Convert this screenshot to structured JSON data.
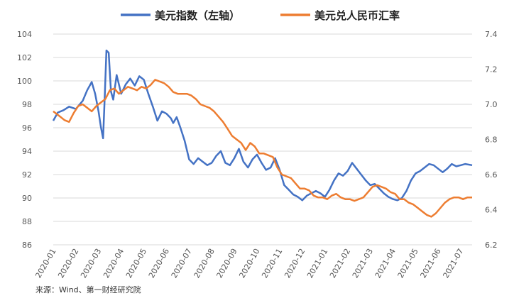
{
  "chart_data": {
    "type": "line",
    "title": "",
    "legend": [
      {
        "name": "美元指数（左轴）",
        "color": "#4472C4"
      },
      {
        "name": "美元兑人民币汇率",
        "color": "#ED7D31"
      }
    ],
    "x_tick_labels": [
      "2020-01",
      "2020-02",
      "2020-03",
      "2020-04",
      "2020-05",
      "2020-06",
      "2020-07",
      "2020-08",
      "2020-09",
      "2020-10",
      "2020-11",
      "2020-12",
      "2021-01",
      "2021-02",
      "2021-03",
      "2021-04",
      "2021-05",
      "2021-06",
      "2021-07"
    ],
    "left_axis": {
      "min": 86,
      "max": 104,
      "ticks": [
        "86",
        "88",
        "90",
        "92",
        "94",
        "96",
        "98",
        "100",
        "102",
        "104"
      ]
    },
    "right_axis": {
      "min": 6.2,
      "max": 7.4,
      "ticks": [
        "6.2",
        "6.4",
        "6.6",
        "6.8",
        "7.0",
        "7.2",
        "7.4"
      ]
    },
    "series": [
      {
        "name": "美元指数（左轴）",
        "axis": "left",
        "color": "#4472C4",
        "x": [
          0,
          0.2,
          0.45,
          0.7,
          1.0,
          1.3,
          1.5,
          1.7,
          1.85,
          2.0,
          2.1,
          2.2,
          2.28,
          2.35,
          2.45,
          2.55,
          2.65,
          2.8,
          3.0,
          3.2,
          3.4,
          3.6,
          3.8,
          4.0,
          4.2,
          4.4,
          4.6,
          4.8,
          5.0,
          5.2,
          5.3,
          5.45,
          5.6,
          5.8,
          6.0,
          6.2,
          6.4,
          6.6,
          6.8,
          7.0,
          7.2,
          7.4,
          7.6,
          7.8,
          8.0,
          8.2,
          8.4,
          8.6,
          8.8,
          9.0,
          9.2,
          9.4,
          9.6,
          9.8,
          10.0,
          10.2,
          10.4,
          10.6,
          10.8,
          11.0,
          11.2,
          11.4,
          11.6,
          11.8,
          12.0,
          12.2,
          12.4,
          12.6,
          12.8,
          13.0,
          13.2,
          13.4,
          13.6,
          13.8,
          14.0,
          14.2,
          14.4,
          14.6,
          14.8,
          15.0,
          15.2,
          15.4,
          15.6,
          15.8,
          16.0,
          16.2,
          16.4,
          16.6,
          16.8,
          17.0,
          17.2,
          17.4,
          17.6,
          17.8,
          18.0,
          18.2,
          18.5
        ],
        "values": [
          96.6,
          97.3,
          97.5,
          97.8,
          97.6,
          98.3,
          99.2,
          99.9,
          98.9,
          97.4,
          96.1,
          95.1,
          98.9,
          102.6,
          102.4,
          99.1,
          98.4,
          100.5,
          98.9,
          99.7,
          100.2,
          99.6,
          100.4,
          100.1,
          98.9,
          97.8,
          96.6,
          97.4,
          97.2,
          96.8,
          96.4,
          96.9,
          96.1,
          94.9,
          93.3,
          92.9,
          93.4,
          93.1,
          92.8,
          93.0,
          93.6,
          94.0,
          93.0,
          92.8,
          93.4,
          94.2,
          93.1,
          92.6,
          93.3,
          93.7,
          93.0,
          92.4,
          92.6,
          93.4,
          92.4,
          91.1,
          90.7,
          90.3,
          90.1,
          89.8,
          90.2,
          90.4,
          90.6,
          90.4,
          90.1,
          90.7,
          91.5,
          92.1,
          91.9,
          92.3,
          93.0,
          92.5,
          92.0,
          91.5,
          91.1,
          91.2,
          90.8,
          90.4,
          90.1,
          89.9,
          89.8,
          90.0,
          90.6,
          91.5,
          92.1,
          92.3,
          92.6,
          92.9,
          92.8,
          92.5,
          92.2,
          92.5,
          92.9,
          92.7,
          92.8,
          92.9,
          92.8
        ]
      },
      {
        "name": "美元兑人民币汇率",
        "axis": "right",
        "color": "#ED7D31",
        "x": [
          0,
          0.3,
          0.5,
          0.7,
          0.9,
          1.1,
          1.3,
          1.5,
          1.7,
          1.9,
          2.1,
          2.3,
          2.5,
          2.7,
          2.9,
          3.1,
          3.3,
          3.5,
          3.7,
          3.9,
          4.1,
          4.3,
          4.5,
          4.7,
          4.9,
          5.1,
          5.3,
          5.5,
          5.7,
          5.9,
          6.1,
          6.3,
          6.5,
          6.7,
          6.9,
          7.1,
          7.3,
          7.5,
          7.7,
          7.9,
          8.1,
          8.3,
          8.5,
          8.7,
          8.9,
          9.1,
          9.3,
          9.5,
          9.7,
          9.9,
          10.1,
          10.3,
          10.5,
          10.7,
          10.9,
          11.1,
          11.3,
          11.5,
          11.7,
          11.9,
          12.1,
          12.3,
          12.5,
          12.7,
          12.9,
          13.1,
          13.3,
          13.5,
          13.7,
          13.9,
          14.1,
          14.3,
          14.5,
          14.7,
          14.9,
          15.1,
          15.3,
          15.5,
          15.7,
          15.9,
          16.1,
          16.3,
          16.5,
          16.7,
          16.9,
          17.1,
          17.3,
          17.5,
          17.7,
          17.9,
          18.1,
          18.3,
          18.5
        ],
        "values": [
          6.96,
          6.93,
          6.91,
          6.9,
          6.95,
          6.99,
          7.0,
          6.98,
          6.96,
          6.99,
          7.01,
          7.03,
          7.08,
          7.09,
          7.06,
          7.08,
          7.1,
          7.09,
          7.08,
          7.1,
          7.09,
          7.11,
          7.14,
          7.13,
          7.12,
          7.1,
          7.07,
          7.06,
          7.06,
          7.06,
          7.05,
          7.03,
          7.0,
          6.99,
          6.98,
          6.96,
          6.93,
          6.9,
          6.86,
          6.82,
          6.8,
          6.78,
          6.74,
          6.78,
          6.76,
          6.72,
          6.72,
          6.71,
          6.7,
          6.64,
          6.6,
          6.59,
          6.58,
          6.55,
          6.52,
          6.52,
          6.51,
          6.48,
          6.47,
          6.47,
          6.46,
          6.48,
          6.49,
          6.47,
          6.46,
          6.46,
          6.45,
          6.46,
          6.47,
          6.5,
          6.53,
          6.54,
          6.53,
          6.52,
          6.5,
          6.49,
          6.46,
          6.46,
          6.44,
          6.43,
          6.41,
          6.39,
          6.37,
          6.36,
          6.38,
          6.41,
          6.44,
          6.46,
          6.47,
          6.47,
          6.46,
          6.47,
          6.47
        ]
      }
    ]
  },
  "source": "来源：Wind、第一财经研究院"
}
